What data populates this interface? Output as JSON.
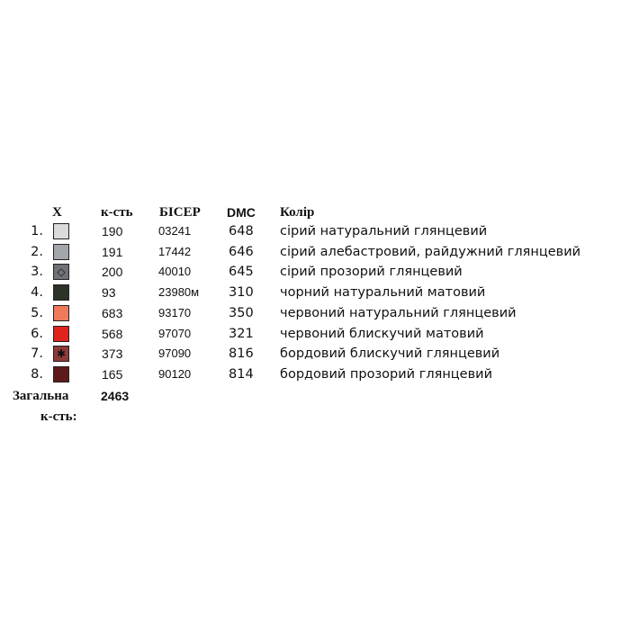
{
  "header": {
    "symbol": "X",
    "quantity": "к-сть",
    "beads": "БІСЕР",
    "dmc": "DMC",
    "color": "Колір"
  },
  "table": {
    "rows": [
      {
        "index": "1.",
        "swatch": "#d9dbdb",
        "quantity": 190,
        "beads": "03241",
        "dmc": 648,
        "color": "сірий натуральний глянцевий"
      },
      {
        "index": "2.",
        "swatch": "#a3a6ab",
        "quantity": 191,
        "beads": "17442",
        "dmc": 646,
        "color": "сірий алебастровий, райдужний глянцевий"
      },
      {
        "index": "3.",
        "swatch": "#6f7377",
        "symbol": "◇",
        "quantity": 200,
        "beads": "40010",
        "dmc": 645,
        "color": "сірий прозорий глянцевий"
      },
      {
        "index": "4.",
        "swatch": "#2c3327",
        "quantity": 93,
        "beads": "23980м",
        "dmc": 310,
        "color": "чорний натуральний матовий"
      },
      {
        "index": "5.",
        "swatch": "#ee7a5a",
        "quantity": 683,
        "beads": "93170",
        "dmc": 350,
        "color": "червоний натуральний глянцевий"
      },
      {
        "index": "6.",
        "swatch": "#e0231d",
        "quantity": 568,
        "beads": "97070",
        "dmc": 321,
        "color": "червоний блискучий матовий"
      },
      {
        "index": "7.",
        "swatch": "#8e3a37",
        "symbol": "✱",
        "quantity": 373,
        "beads": "97090",
        "dmc": 816,
        "color": "бордовий блискучий глянцевий"
      },
      {
        "index": "8.",
        "swatch": "#5e1a1a",
        "quantity": 165,
        "beads": "90120",
        "dmc": 814,
        "color": "бордовий прозорий глянцевий"
      }
    ]
  },
  "total": {
    "label_line1": "Загальна",
    "label_line2": "к-сть:",
    "value": 2463
  }
}
